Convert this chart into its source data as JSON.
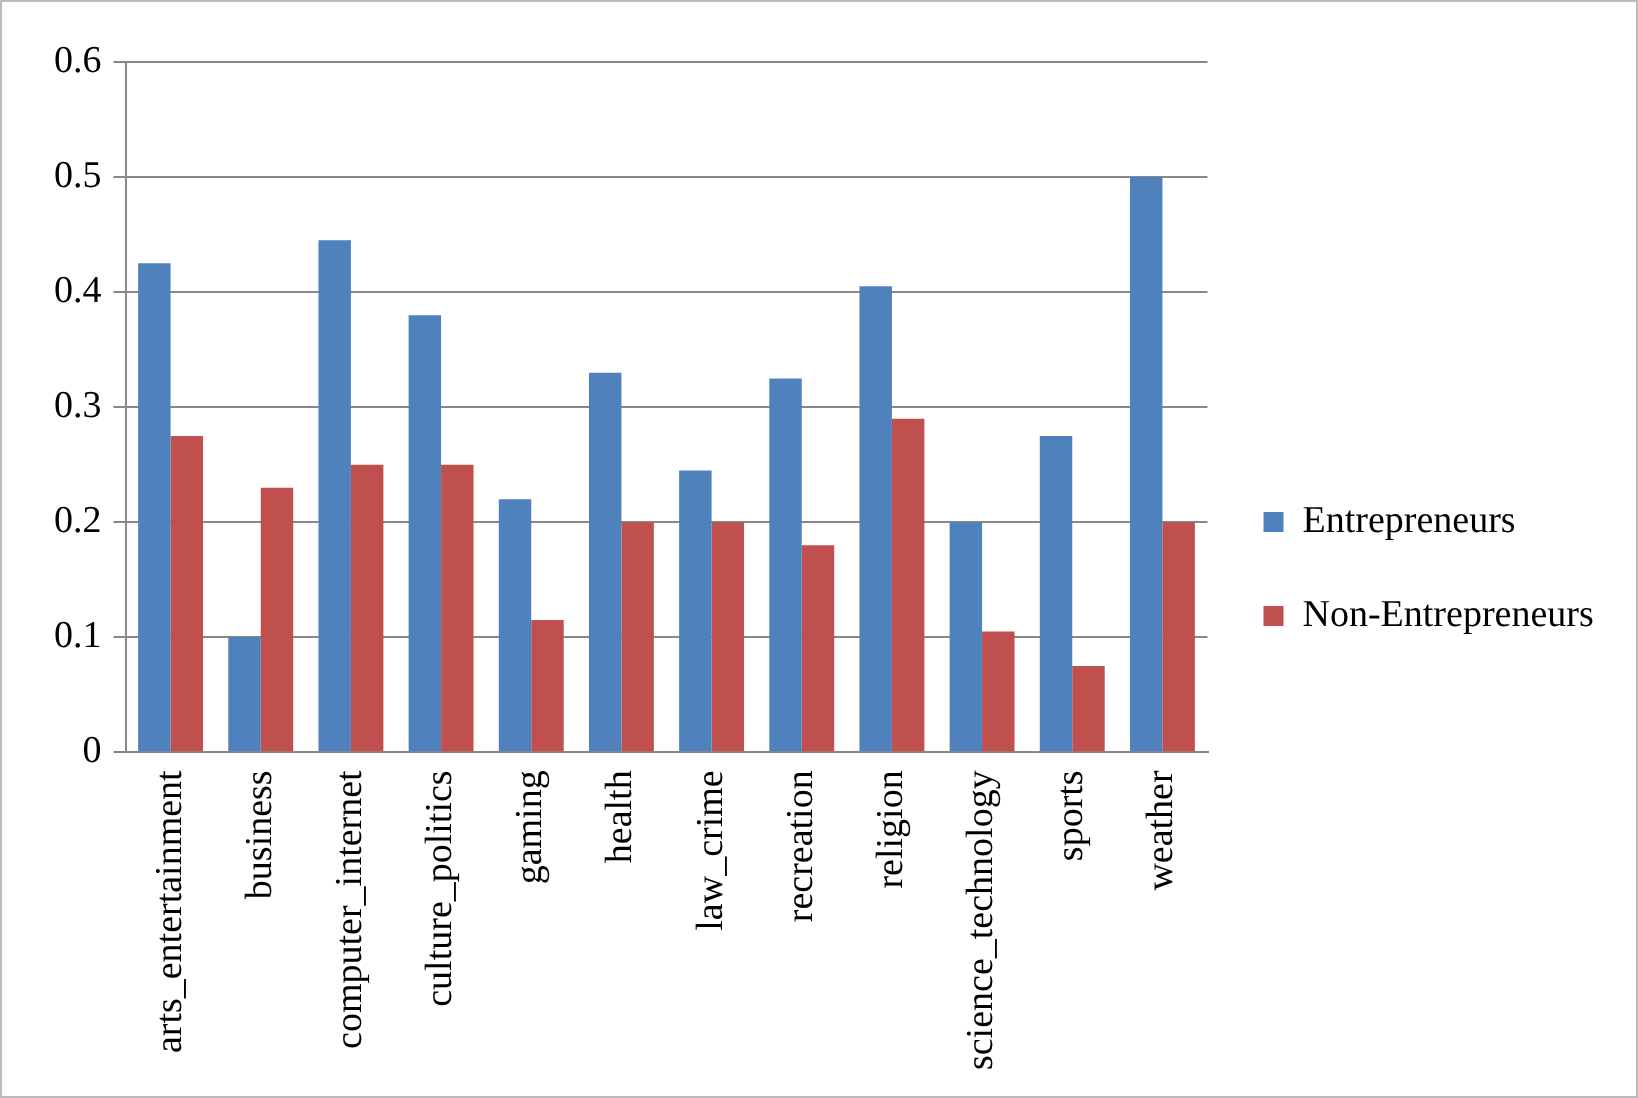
{
  "chart_data": {
    "type": "bar",
    "categories": [
      "arts_entertainment",
      "business",
      "computer_internet",
      "culture_politics",
      "gaming",
      "health",
      "law_crime",
      "recreation",
      "religion",
      "science_technology",
      "sports",
      "weather"
    ],
    "series": [
      {
        "name": "Entrepreneurs",
        "color": "#4f81bd",
        "values": [
          0.425,
          0.1,
          0.445,
          0.38,
          0.22,
          0.33,
          0.245,
          0.325,
          0.405,
          0.2,
          0.275,
          0.5
        ]
      },
      {
        "name": "Non-Entrepreneurs",
        "color": "#c0504d",
        "values": [
          0.275,
          0.23,
          0.25,
          0.25,
          0.115,
          0.2,
          0.2,
          0.18,
          0.29,
          0.105,
          0.075,
          0.2
        ]
      }
    ],
    "ylim": [
      0,
      0.6
    ],
    "yticks": [
      0,
      0.1,
      0.2,
      0.3,
      0.4,
      0.5,
      0.6
    ],
    "grid": "y",
    "legend": "right"
  }
}
